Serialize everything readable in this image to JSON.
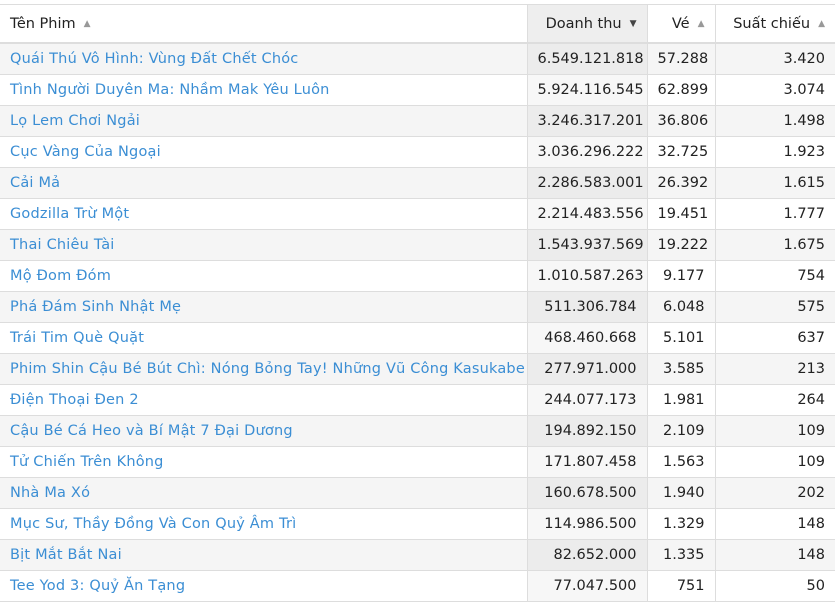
{
  "table": {
    "columns": [
      {
        "label": "Tên Phim",
        "sort": "asc-icon"
      },
      {
        "label": "Doanh thu",
        "sort": "desc-icon",
        "active": true
      },
      {
        "label": "Vé",
        "sort": "asc-icon"
      },
      {
        "label": "Suất chiếu",
        "sort": "asc-icon"
      }
    ],
    "rows": [
      [
        "Quái Thú Vô Hình: Vùng Đất Chết Chóc",
        "6.549.121.818",
        "57.288",
        "3.420"
      ],
      [
        "Tình Người Duyên Ma: Nhầm Mak Yêu Luôn",
        "5.924.116.545",
        "62.899",
        "3.074"
      ],
      [
        "Lọ Lem Chơi Ngải",
        "3.246.317.201",
        "36.806",
        "1.498"
      ],
      [
        "Cục Vàng Của Ngoại",
        "3.036.296.222",
        "32.725",
        "1.923"
      ],
      [
        "Cải Mả",
        "2.286.583.001",
        "26.392",
        "1.615"
      ],
      [
        "Godzilla Trừ Một",
        "2.214.483.556",
        "19.451",
        "1.777"
      ],
      [
        "Thai Chiêu Tài",
        "1.543.937.569",
        "19.222",
        "1.675"
      ],
      [
        "Mộ Đom Đóm",
        "1.010.587.263",
        "9.177",
        "754"
      ],
      [
        "Phá Đám Sinh Nhật Mẹ",
        "511.306.784",
        "6.048",
        "575"
      ],
      [
        "Trái Tim Què Quặt",
        "468.460.668",
        "5.101",
        "637"
      ],
      [
        "Phim Shin Cậu Bé Bút Chì: Nóng Bỏng Tay! Những Vũ Công Kasukabe",
        "277.971.000",
        "3.585",
        "213"
      ],
      [
        "Điện Thoại Đen 2",
        "244.077.173",
        "1.981",
        "264"
      ],
      [
        "Cậu Bé Cá Heo và Bí Mật 7 Đại Dương",
        "194.892.150",
        "2.109",
        "109"
      ],
      [
        "Tử Chiến Trên Không",
        "171.807.458",
        "1.563",
        "109"
      ],
      [
        "Nhà Ma Xó",
        "160.678.500",
        "1.940",
        "202"
      ],
      [
        "Mục Sư, Thầy Đồng Và Con Quỷ Âm Trì",
        "114.986.500",
        "1.329",
        "148"
      ],
      [
        "Bịt Mắt Bắt Nai",
        "82.652.000",
        "1.335",
        "148"
      ],
      [
        "Tee Yod 3: Quỷ Ăn Tạng",
        "77.047.500",
        "751",
        "50"
      ]
    ]
  }
}
